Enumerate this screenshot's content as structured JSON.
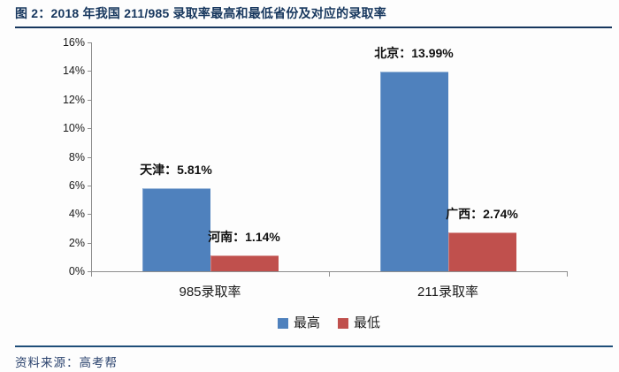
{
  "header": {
    "title": "图 2：2018 年我国 211/985 录取率最高和最低省份及对应的录取率"
  },
  "footer": {
    "source": "资料来源：高考帮"
  },
  "colors": {
    "title_navy": "#17375E",
    "rule_navy": "#1F4E79",
    "axis_gray": "#8E8E8E",
    "series_high_blue": "#4F81BD",
    "series_low_red": "#C0504D"
  },
  "chart_data": {
    "type": "bar",
    "title": "2018 年我国 211/985 录取率最高和最低省份及对应的录取率",
    "categories": [
      "985录取率",
      "211录取率"
    ],
    "series": [
      {
        "name": "最高",
        "color": "#4F81BD",
        "values": [
          5.81,
          13.99
        ],
        "point_labels": [
          "天津：5.81%",
          "北京：13.99%"
        ]
      },
      {
        "name": "最低",
        "color": "#C0504D",
        "values": [
          1.14,
          2.74
        ],
        "point_labels": [
          "河南：1.14%",
          "广西：2.74%"
        ]
      }
    ],
    "xlabel": "",
    "ylabel": "",
    "ylim": [
      0,
      16
    ],
    "y_tick_step": 2,
    "y_tick_labels": [
      "0%",
      "2%",
      "4%",
      "6%",
      "8%",
      "10%",
      "12%",
      "14%",
      "16%"
    ],
    "grid": false,
    "legend_position": "bottom",
    "legend_entries": [
      "最高",
      "最低"
    ]
  }
}
